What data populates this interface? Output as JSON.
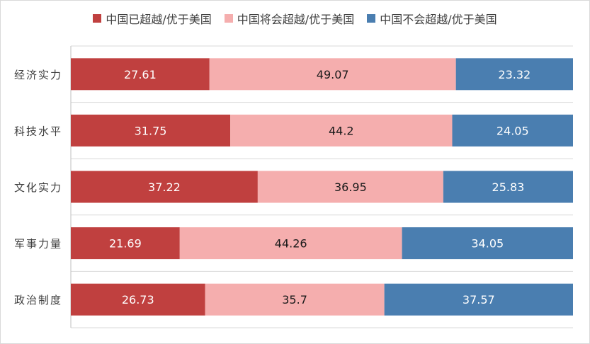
{
  "chart_data": {
    "type": "bar",
    "orientation": "horizontal",
    "stacked": true,
    "categories": [
      "经济实力",
      "科技水平",
      "文化实力",
      "军事力量",
      "政治制度"
    ],
    "series": [
      {
        "name": "中国已超越/优于美国",
        "color": "#c0403f",
        "values": [
          27.61,
          31.75,
          37.22,
          21.69,
          26.73
        ],
        "label_color": "#ffffff"
      },
      {
        "name": "中国将会超越/优于美国",
        "color": "#f5aeae",
        "values": [
          49.07,
          44.2,
          36.95,
          44.26,
          35.7
        ],
        "label_color": "#1a1a1a"
      },
      {
        "name": "中国不会超越/优于美国",
        "color": "#4a7eb0",
        "values": [
          23.32,
          24.05,
          25.83,
          34.05,
          37.57
        ],
        "label_color": "#ffffff"
      }
    ],
    "xlim": [
      0,
      100
    ],
    "grid": true,
    "legend_position": "top"
  }
}
